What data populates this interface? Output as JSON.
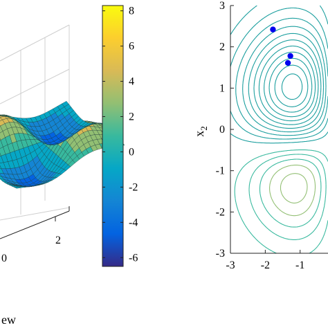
{
  "chart_data": [
    {
      "type": "surface",
      "title": "",
      "tick_labels": {
        "x": [
          "0",
          "2"
        ]
      },
      "caption_fragment": "ew",
      "colormap": [
        "#352a87",
        "#0363e1",
        "#1485d4",
        "#06a7c6",
        "#38b99e",
        "#92bf73",
        "#d9ba56",
        "#fcce2e",
        "#f9fb0e"
      ]
    },
    {
      "type": "colorbar",
      "range": [
        -6.5,
        8.3
      ],
      "ticks": [
        "8",
        "6",
        "4",
        "2",
        "0",
        "-2",
        "-4",
        "-6"
      ],
      "tick_values": [
        8,
        6,
        4,
        2,
        0,
        -2,
        -4,
        -6
      ]
    },
    {
      "type": "contour",
      "xlabel": "",
      "ylabel": "x_2",
      "ylabel_main": "x",
      "ylabel_sub": "2",
      "xlim": [
        -3,
        -0.2
      ],
      "ylim": [
        -3,
        3
      ],
      "x_ticks": [
        "-3",
        "-2",
        "-1"
      ],
      "x_tick_values": [
        -3,
        -2,
        -1
      ],
      "y_ticks": [
        "3",
        "2",
        "1",
        "0",
        "-1",
        "-2",
        "-3"
      ],
      "y_tick_values": [
        3,
        2,
        1,
        0,
        -1,
        -2,
        -3
      ],
      "line_color": "#1a9e9e",
      "points": [
        {
          "x": -1.78,
          "y": 2.42
        },
        {
          "x": -1.28,
          "y": 1.78
        },
        {
          "x": -1.35,
          "y": 1.61
        }
      ],
      "point_color": "#0000ee"
    }
  ]
}
